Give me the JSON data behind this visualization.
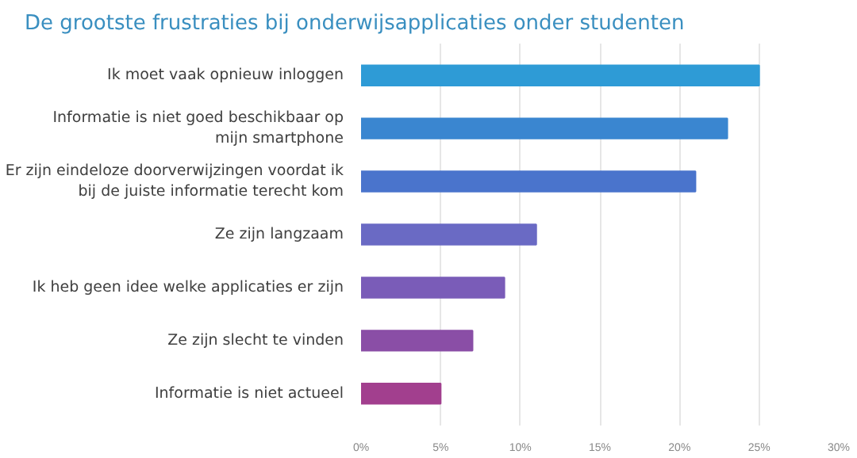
{
  "chart_data": {
    "type": "bar",
    "orientation": "horizontal",
    "title": "De grootste frustraties bij onderwijsapplicaties onder studenten",
    "categories": [
      "Ik moet vaak opnieuw inloggen",
      "Informatie is niet goed beschikbaar op\nmijn smartphone",
      "Er zijn eindeloze doorverwijzingen voordat ik\nbij de juiste informatie terecht kom",
      "Ze zijn langzaam",
      "Ik heb geen idee welke applicaties er zijn",
      "Ze zijn slecht te vinden",
      "Informatie is niet actueel"
    ],
    "values": [
      25,
      23,
      21,
      11,
      9,
      7,
      5
    ],
    "colors": [
      "#2e9bd6",
      "#3a86d0",
      "#4a74cc",
      "#6a6ac4",
      "#7a5cb8",
      "#8a4ea6",
      "#a23f8e"
    ],
    "xlim": [
      0,
      30
    ],
    "xticks": [
      {
        "value": 0,
        "label": "0%"
      },
      {
        "value": 5,
        "label": "5%"
      },
      {
        "value": 10,
        "label": "10%"
      },
      {
        "value": 15,
        "label": "15%"
      },
      {
        "value": 20,
        "label": "20%"
      },
      {
        "value": 25,
        "label": "25%"
      },
      {
        "value": 30,
        "label": "30%"
      }
    ],
    "grid": "x"
  }
}
